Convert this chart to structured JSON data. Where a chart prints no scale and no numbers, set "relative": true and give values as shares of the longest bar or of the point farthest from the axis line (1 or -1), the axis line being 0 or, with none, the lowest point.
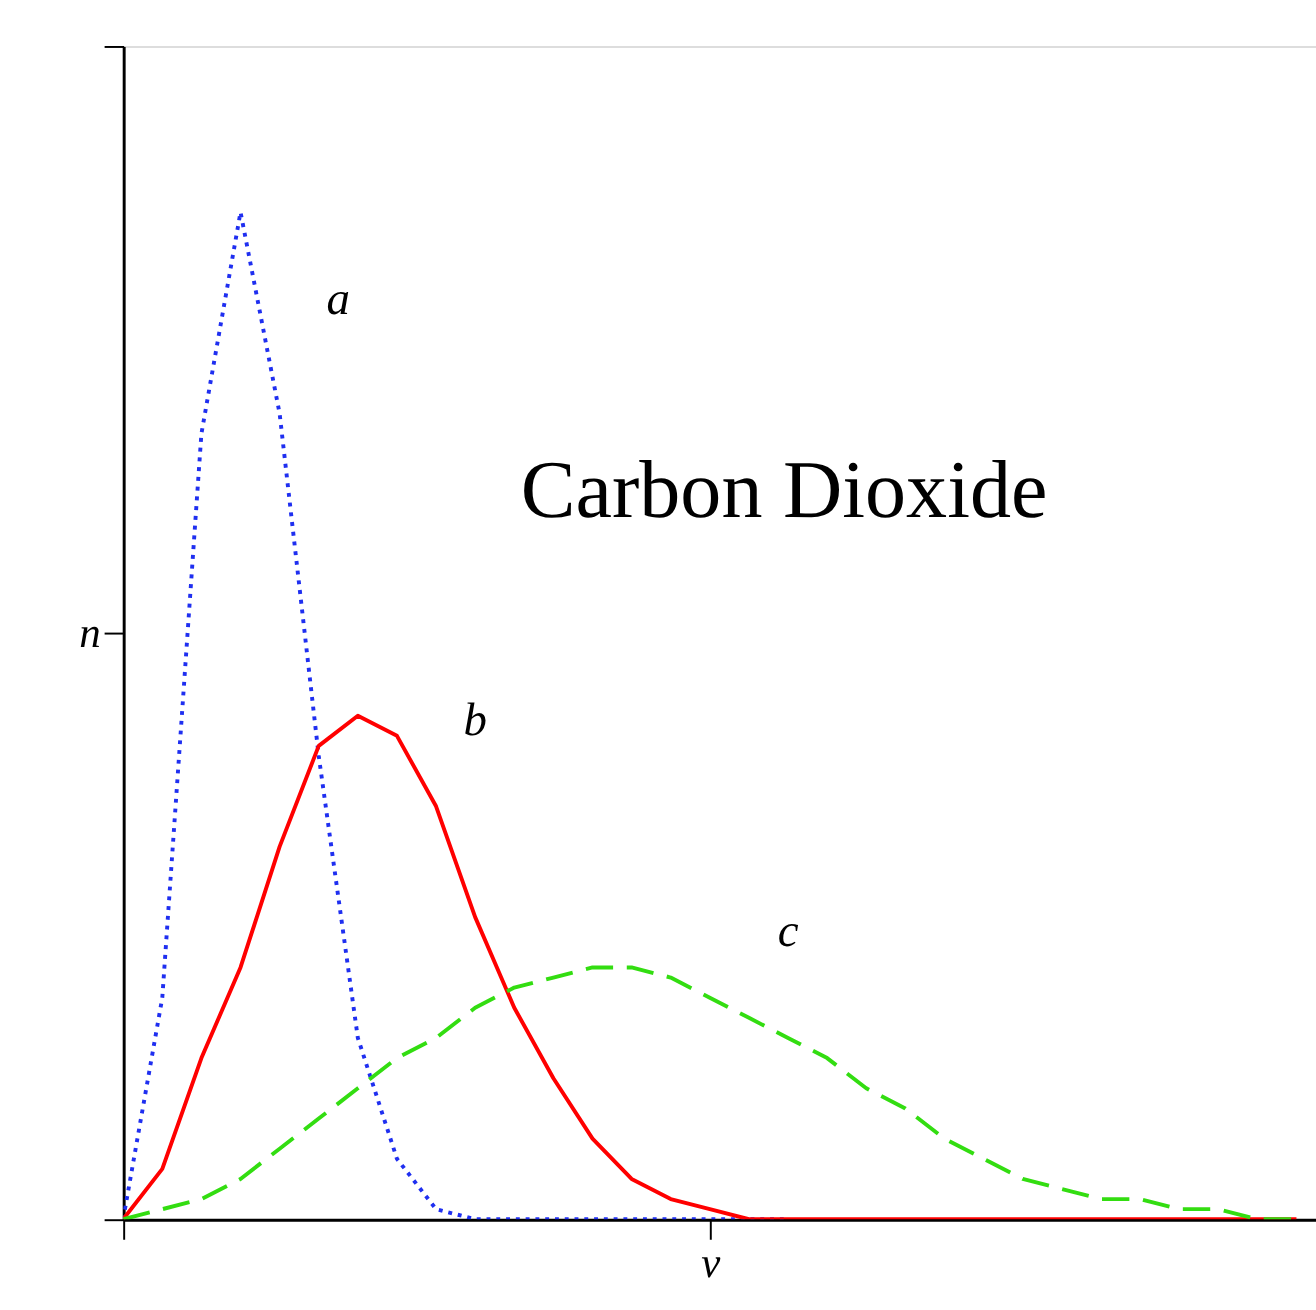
{
  "chart_data": {
    "type": "line",
    "title": "Carbon Dioxide",
    "xlabel": "v",
    "ylabel": "n",
    "relative": true,
    "categories": [
      null,
      null,
      null,
      null,
      null,
      null,
      null,
      null,
      null,
      null,
      null,
      null,
      null,
      null,
      null,
      null,
      null,
      null,
      null,
      null,
      null,
      null,
      null,
      null,
      null,
      null,
      null,
      null,
      null,
      null,
      null
    ],
    "series": [
      {
        "name": "a",
        "color": "#1f2ff0",
        "line_style": "dotted",
        "values": [
          0,
          0.22,
          0.78,
          1.0,
          0.8,
          0.46,
          0.18,
          0.06,
          0.01,
          0,
          0,
          0,
          0,
          0,
          0,
          0,
          0,
          0,
          null,
          null,
          null,
          null,
          null,
          null,
          null,
          null,
          null,
          null,
          null,
          null,
          null
        ]
      },
      {
        "name": "b",
        "color": "#ff0000",
        "line_style": "solid",
        "values": [
          0,
          0.05,
          0.16,
          0.25,
          0.37,
          0.47,
          0.5,
          0.48,
          0.41,
          0.3,
          0.21,
          0.14,
          0.08,
          0.04,
          0.02,
          0.01,
          0,
          0,
          0,
          0,
          0,
          0,
          0,
          0,
          0,
          0,
          0,
          0,
          0,
          0,
          0
        ]
      },
      {
        "name": "c",
        "color": "#33dd11",
        "line_style": "dashed",
        "values": [
          0,
          0.01,
          0.02,
          0.04,
          0.07,
          0.1,
          0.13,
          0.16,
          0.18,
          0.21,
          0.23,
          0.24,
          0.25,
          0.25,
          0.24,
          0.22,
          0.2,
          0.18,
          0.16,
          0.13,
          0.11,
          0.08,
          0.06,
          0.04,
          0.03,
          0.02,
          0.02,
          0.01,
          0.01,
          0,
          0
        ]
      }
    ]
  }
}
